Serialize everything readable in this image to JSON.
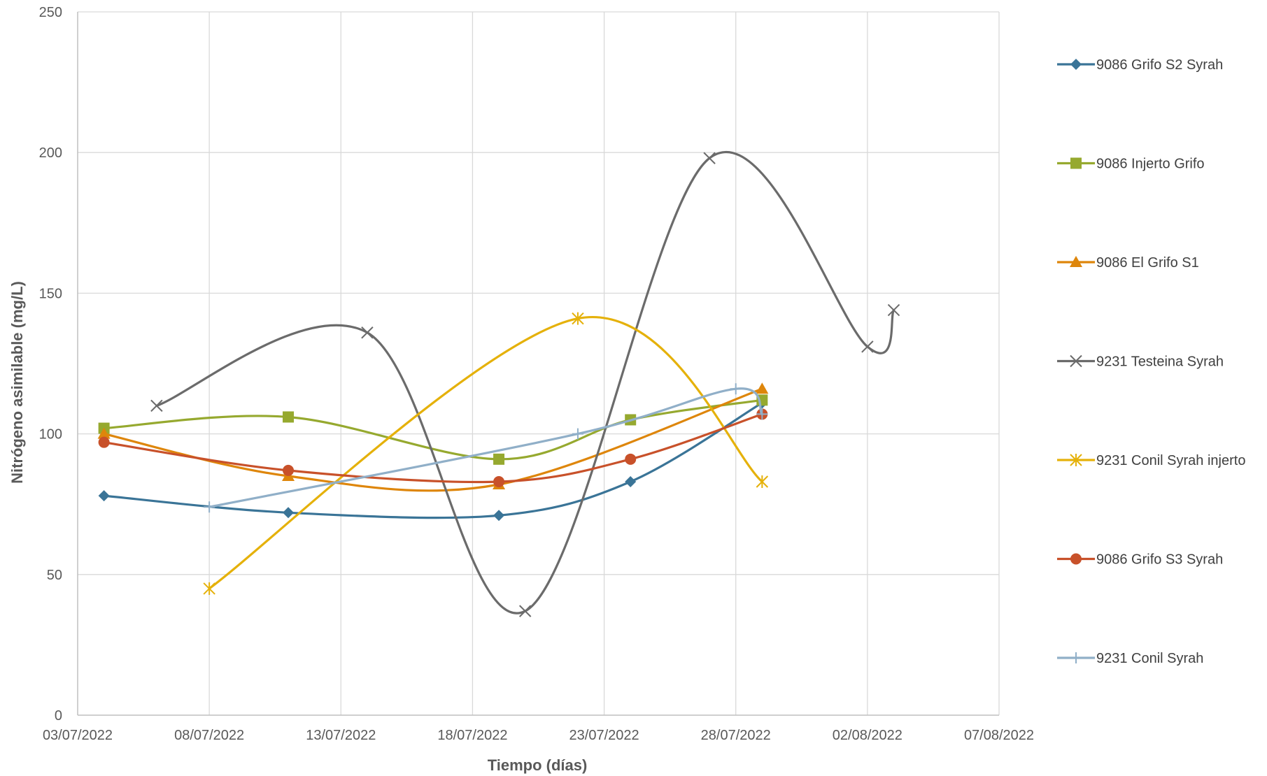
{
  "chart_data": {
    "type": "line",
    "title": "",
    "xlabel": "Tiempo (días)",
    "ylabel": "Nitrógeno asimilable (mg/L)",
    "x_type": "date",
    "xlim": [
      "2022-07-03",
      "2022-08-07"
    ],
    "ylim": [
      0,
      250
    ],
    "x_ticks": [
      {
        "date": "2022-07-03",
        "label": "03/07/2022"
      },
      {
        "date": "2022-07-08",
        "label": "08/07/2022"
      },
      {
        "date": "2022-07-13",
        "label": "13/07/2022"
      },
      {
        "date": "2022-07-18",
        "label": "18/07/2022"
      },
      {
        "date": "2022-07-23",
        "label": "23/07/2022"
      },
      {
        "date": "2022-07-28",
        "label": "28/07/2022"
      },
      {
        "date": "2022-08-02",
        "label": "02/08/2022"
      },
      {
        "date": "2022-08-07",
        "label": "07/08/2022"
      }
    ],
    "y_ticks": [
      0,
      50,
      100,
      150,
      200,
      250
    ],
    "grid": true,
    "smoothed": true,
    "legend_position": "right",
    "series": [
      {
        "name": "9086 Grifo S2 Syrah",
        "color": "#3A7497",
        "marker": "diamond",
        "x": [
          "2022-07-04",
          "2022-07-11",
          "2022-07-19",
          "2022-07-24",
          "2022-07-29"
        ],
        "y": [
          78,
          72,
          71,
          83,
          111
        ]
      },
      {
        "name": "9086 Injerto Grifo",
        "color": "#96A92F",
        "marker": "square",
        "x": [
          "2022-07-04",
          "2022-07-11",
          "2022-07-19",
          "2022-07-24",
          "2022-07-29"
        ],
        "y": [
          102,
          106,
          91,
          105,
          112
        ]
      },
      {
        "name": "9086 El Grifo S1",
        "color": "#DE860B",
        "marker": "triangle",
        "x": [
          "2022-07-04",
          "2022-07-11",
          "2022-07-19",
          "2022-07-29"
        ],
        "y": [
          100,
          85,
          82,
          116
        ]
      },
      {
        "name": "9231 Testeina Syrah",
        "color": "#6B6B6B",
        "marker": "x",
        "x": [
          "2022-07-06",
          "2022-07-14",
          "2022-07-20",
          "2022-07-27",
          "2022-08-02",
          "2022-08-03"
        ],
        "y": [
          110,
          136,
          37,
          198,
          131,
          144
        ]
      },
      {
        "name": "9231 Conil Syrah injerto",
        "color": "#E5B10A",
        "marker": "asterisk",
        "x": [
          "2022-07-08",
          "2022-07-22",
          "2022-07-29"
        ],
        "y": [
          45,
          141,
          83
        ]
      },
      {
        "name": "9086 Grifo S3 Syrah",
        "color": "#C8512A",
        "marker": "circle",
        "x": [
          "2022-07-04",
          "2022-07-11",
          "2022-07-19",
          "2022-07-24",
          "2022-07-29"
        ],
        "y": [
          97,
          87,
          83,
          91,
          107
        ]
      },
      {
        "name": "9231 Conil Syrah",
        "color": "#90AFC8",
        "marker": "plus",
        "x": [
          "2022-07-08",
          "2022-07-22",
          "2022-07-28",
          "2022-07-29"
        ],
        "y": [
          74,
          100,
          116,
          107
        ]
      }
    ]
  }
}
